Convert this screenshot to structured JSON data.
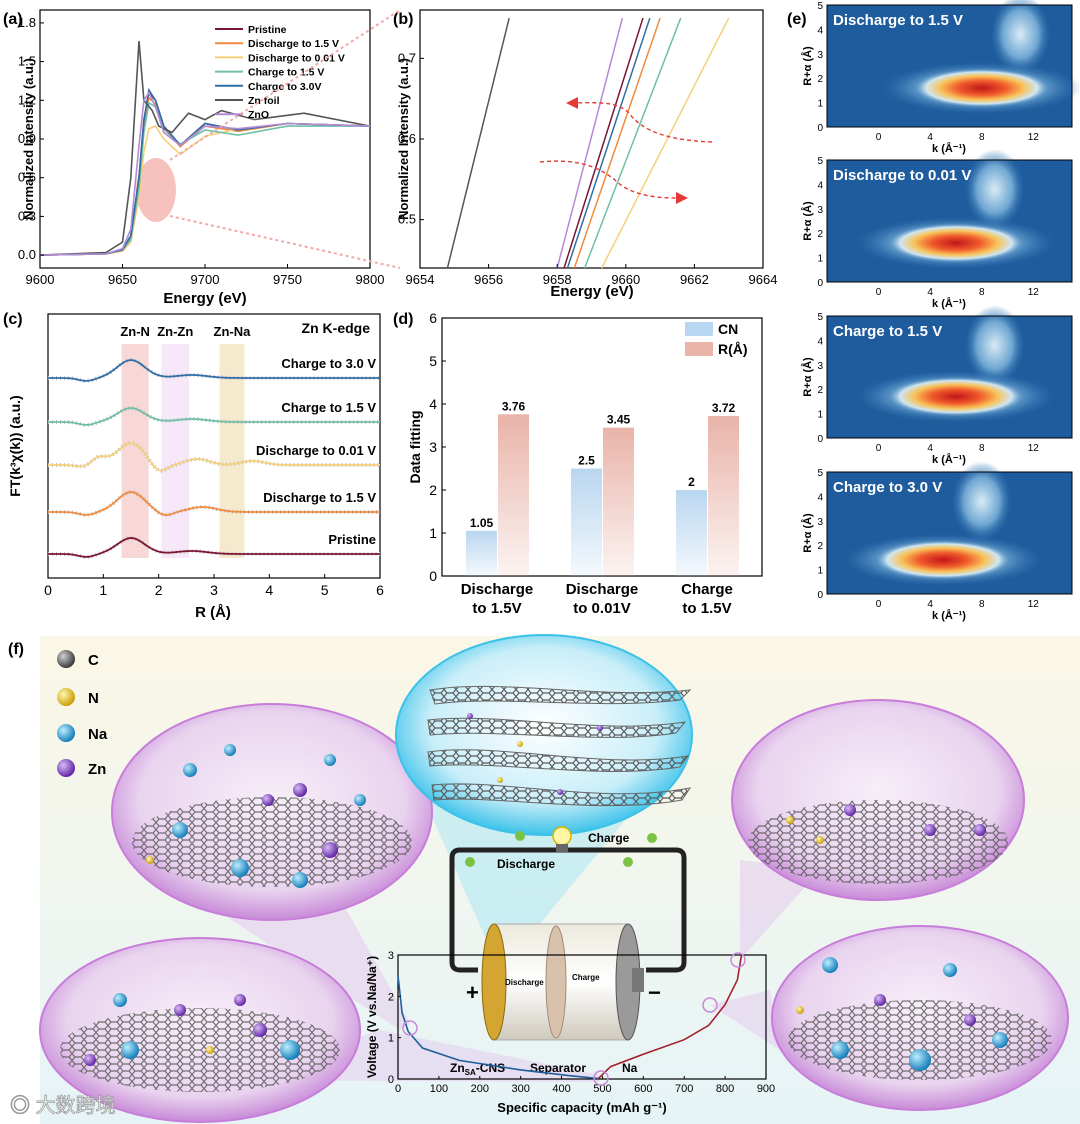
{
  "panels": {
    "a": "(a)",
    "b": "(b)",
    "c": "(c)",
    "d": "(d)",
    "e": "(e)",
    "f": "(f)"
  },
  "colors": {
    "pristine": "#7a1533",
    "discharge_1_5": "#f08a3c",
    "discharge_0_01": "#f5cf7a",
    "charge_1_5": "#6fbfa8",
    "charge_3_0": "#2f6ea6",
    "zn_foil": "#555555",
    "zno": "#b48ad6",
    "cn_bar": "#b9d6f0",
    "r_bar": "#e9b3a8"
  },
  "chart_data": [
    {
      "id": "a",
      "type": "line",
      "xlabel": "Energy (eV)",
      "ylabel": "Normalized Intensity (a.u.)",
      "xlim": [
        9600,
        9800
      ],
      "ylim": [
        -0.1,
        1.9
      ],
      "xticks": [
        "9600",
        "9650",
        "9700",
        "9750",
        "9800"
      ],
      "yticks": [
        "0.0",
        "0.3",
        "0.6",
        "0.9",
        "1.2",
        "1.5",
        "1.8"
      ],
      "legend": [
        "Pristine",
        "Discharge to 1.5 V",
        "Discharge to 0.01 V",
        "Charge to 1.5 V",
        "Charge to 3.0V",
        "Zn foil",
        "ZnO"
      ],
      "series": [
        {
          "name": "Pristine",
          "color_key": "pristine",
          "x": [
            9600,
            9640,
            9650,
            9655,
            9660,
            9663,
            9666,
            9670,
            9675,
            9685,
            9700,
            9720,
            9750,
            9800
          ],
          "y": [
            0,
            0.01,
            0.04,
            0.15,
            0.6,
            1.05,
            1.26,
            1.2,
            1.0,
            0.85,
            1.02,
            0.97,
            1.02,
            1.0
          ]
        },
        {
          "name": "Discharge to 1.5 V",
          "color_key": "discharge_1_5",
          "x": [
            9600,
            9640,
            9650,
            9655,
            9660,
            9663,
            9666,
            9670,
            9675,
            9685,
            9700,
            9720,
            9750,
            9800
          ],
          "y": [
            0,
            0.01,
            0.04,
            0.14,
            0.58,
            1.0,
            1.22,
            1.17,
            0.98,
            0.84,
            1.0,
            0.96,
            1.02,
            1.0
          ]
        },
        {
          "name": "Discharge to 0.01 V",
          "color_key": "discharge_0_01",
          "x": [
            9600,
            9640,
            9650,
            9655,
            9660,
            9663,
            9666,
            9670,
            9675,
            9685,
            9700,
            9720,
            9750,
            9800
          ],
          "y": [
            0,
            0.01,
            0.03,
            0.1,
            0.45,
            0.8,
            0.98,
            1.0,
            0.9,
            0.78,
            0.92,
            0.98,
            1.02,
            1.0
          ]
        },
        {
          "name": "Charge to 1.5 V",
          "color_key": "charge_1_5",
          "x": [
            9600,
            9640,
            9650,
            9655,
            9660,
            9663,
            9666,
            9670,
            9675,
            9685,
            9700,
            9720,
            9750,
            9800
          ],
          "y": [
            0,
            0.01,
            0.04,
            0.12,
            0.52,
            0.95,
            1.18,
            1.15,
            0.98,
            0.86,
            0.97,
            0.93,
            1.0,
            1.0
          ]
        },
        {
          "name": "Charge to 3.0V",
          "color_key": "charge_3_0",
          "x": [
            9600,
            9640,
            9650,
            9655,
            9660,
            9663,
            9666,
            9670,
            9675,
            9685,
            9700,
            9720,
            9750,
            9800
          ],
          "y": [
            0,
            0.01,
            0.04,
            0.15,
            0.6,
            1.04,
            1.28,
            1.2,
            1.0,
            0.85,
            1.02,
            0.97,
            1.02,
            1.0
          ]
        },
        {
          "name": "Zn foil",
          "color_key": "zn_foil",
          "x": [
            9600,
            9640,
            9650,
            9655,
            9660,
            9663,
            9668,
            9672,
            9680,
            9690,
            9700,
            9710,
            9730,
            9760,
            9800
          ],
          "y": [
            0,
            0.02,
            0.1,
            0.6,
            1.66,
            1.2,
            1.12,
            1.0,
            0.95,
            1.1,
            1.05,
            1.12,
            1.05,
            1.1,
            1.0
          ]
        },
        {
          "name": "ZnO",
          "color_key": "zno",
          "x": [
            9600,
            9640,
            9650,
            9655,
            9660,
            9663,
            9666,
            9670,
            9675,
            9685,
            9700,
            9720,
            9750,
            9800
          ],
          "y": [
            0,
            0.01,
            0.05,
            0.2,
            0.85,
            1.2,
            1.26,
            1.15,
            0.95,
            0.85,
            1.0,
            0.98,
            1.02,
            1.0
          ]
        }
      ]
    },
    {
      "id": "b",
      "type": "line",
      "xlabel": "Energy (eV)",
      "ylabel": "Normalized Intensity (a.u.)",
      "xlim": [
        9654,
        9664
      ],
      "ylim": [
        0.44,
        0.76
      ],
      "xticks": [
        "9654",
        "9656",
        "9658",
        "9660",
        "9662",
        "9664"
      ],
      "yticks": [
        "0.5",
        "0.6",
        "0.7"
      ],
      "series": [
        {
          "name": "Zn foil",
          "color_key": "zn_foil",
          "x": [
            9654.8,
            9656.6
          ],
          "y": [
            0.44,
            0.75
          ]
        },
        {
          "name": "ZnO",
          "color_key": "zno",
          "x": [
            9658.0,
            9659.9
          ],
          "y": [
            0.44,
            0.75
          ]
        },
        {
          "name": "Pristine",
          "color_key": "pristine",
          "x": [
            9658.2,
            9660.5
          ],
          "y": [
            0.44,
            0.75
          ]
        },
        {
          "name": "Charge to 3.0V",
          "color_key": "charge_3_0",
          "x": [
            9658.3,
            9660.7
          ],
          "y": [
            0.44,
            0.75
          ]
        },
        {
          "name": "Discharge to 1.5 V",
          "color_key": "discharge_1_5",
          "x": [
            9658.5,
            9661.0
          ],
          "y": [
            0.44,
            0.75
          ]
        },
        {
          "name": "Charge to 1.5 V",
          "color_key": "charge_1_5",
          "x": [
            9658.8,
            9661.6
          ],
          "y": [
            0.44,
            0.75
          ]
        },
        {
          "name": "Discharge to 0.01 V",
          "color_key": "discharge_0_01",
          "x": [
            9659.3,
            9663.0
          ],
          "y": [
            0.44,
            0.75
          ]
        }
      ]
    },
    {
      "id": "c",
      "type": "line",
      "xlabel": "R (Å)",
      "ylabel": "FT(k³χ(k)) (a.u.)",
      "xlim": [
        0,
        6
      ],
      "xticks": [
        "0",
        "1",
        "2",
        "3",
        "4",
        "5",
        "6"
      ],
      "title": "Zn K-edge",
      "shells": [
        {
          "label": "Zn-N",
          "from": 1.33,
          "to": 1.82
        },
        {
          "label": "Zn-Zn",
          "from": 2.05,
          "to": 2.55
        },
        {
          "label": "Zn-Na",
          "from": 3.1,
          "to": 3.55
        }
      ],
      "series": [
        {
          "name": "Charge to 3.0 V",
          "color_key": "charge_3_0",
          "offset": 4
        },
        {
          "name": "Charge to 1.5 V",
          "color_key": "charge_1_5",
          "offset": 3
        },
        {
          "name": "Discharge to 0.01 V",
          "color_key": "discharge_0_01",
          "offset": 2
        },
        {
          "name": "Discharge to 1.5 V",
          "color_key": "discharge_1_5",
          "offset": 1
        },
        {
          "name": "Pristine",
          "color_key": "pristine",
          "offset": 0
        }
      ]
    },
    {
      "id": "d",
      "type": "bar",
      "ylabel": "Data fitting",
      "ylim": [
        0,
        6
      ],
      "yticks": [
        "0",
        "1",
        "2",
        "3",
        "4",
        "5",
        "6"
      ],
      "categories": [
        "Discharge to 1.5V",
        "Discharge to 0.01V",
        "Charge to 1.5V"
      ],
      "category_lines": [
        [
          "Discharge",
          "to 1.5V"
        ],
        [
          "Discharge",
          "to 0.01V"
        ],
        [
          "Charge",
          "to 1.5V"
        ]
      ],
      "series": [
        {
          "name": "CN",
          "color_key": "cn_bar",
          "values": [
            1.05,
            2.5,
            2
          ],
          "labels": [
            "1.05",
            "2.5",
            "2"
          ]
        },
        {
          "name": "R(Å)",
          "color_key": "r_bar",
          "values": [
            3.76,
            3.45,
            3.72
          ],
          "labels": [
            "3.76",
            "3.45",
            "3.72"
          ]
        }
      ]
    },
    {
      "id": "e",
      "type": "heatmap",
      "xlabel": "k (Å⁻¹)",
      "ylabel": "R+α (Å)",
      "xticks": [
        "0",
        "4",
        "8",
        "12"
      ],
      "yticks": [
        "0",
        "1",
        "2",
        "3",
        "4",
        "5"
      ],
      "maps": [
        {
          "title": "Discharge to 1.5 V",
          "peak_k": 8,
          "peak_r": 1.6
        },
        {
          "title": "Discharge to 0.01 V",
          "peak_k": 6,
          "peak_r": 1.6
        },
        {
          "title": "Charge to 1.5 V",
          "peak_k": 6,
          "peak_r": 1.7
        },
        {
          "title": "Charge to 3.0 V",
          "peak_k": 5,
          "peak_r": 1.4
        }
      ]
    },
    {
      "id": "f",
      "type": "line",
      "xlabel": "Specific capacity (mAh g⁻¹)",
      "ylabel": "Voltage (V vs.Na/Na⁺)",
      "xlim": [
        0,
        900
      ],
      "ylim": [
        0,
        3
      ],
      "xticks": [
        "0",
        "100",
        "200",
        "300",
        "400",
        "500",
        "600",
        "700",
        "800",
        "900"
      ],
      "yticks": [
        "0",
        "1",
        "2",
        "3"
      ],
      "series": [
        {
          "name": "Discharge",
          "color": "#1f5f99",
          "x": [
            0,
            10,
            25,
            60,
            150,
            300,
            420,
            490
          ],
          "y": [
            2.5,
            1.6,
            1.15,
            0.75,
            0.45,
            0.22,
            0.08,
            0.01
          ]
        },
        {
          "name": "Charge",
          "color": "#a31f2e",
          "x": [
            490,
            520,
            600,
            700,
            760,
            800,
            830,
            840
          ],
          "y": [
            0.01,
            0.3,
            0.6,
            0.95,
            1.3,
            1.8,
            2.4,
            3.0
          ]
        }
      ]
    }
  ],
  "schematic": {
    "legend": [
      "C",
      "N",
      "Na",
      "Zn"
    ],
    "charge_label": "Charge",
    "discharge_label": "Discharge",
    "cell_discharge": "Discharge",
    "cell_charge": "Charge",
    "plus": "+",
    "minus": "−",
    "cathode_label": "Zn",
    "cathode_sub": "SA",
    "cathode_suffix": "-CNS",
    "separator_label": "Separator",
    "anode_label": "Na"
  },
  "watermark": "大数跨境"
}
